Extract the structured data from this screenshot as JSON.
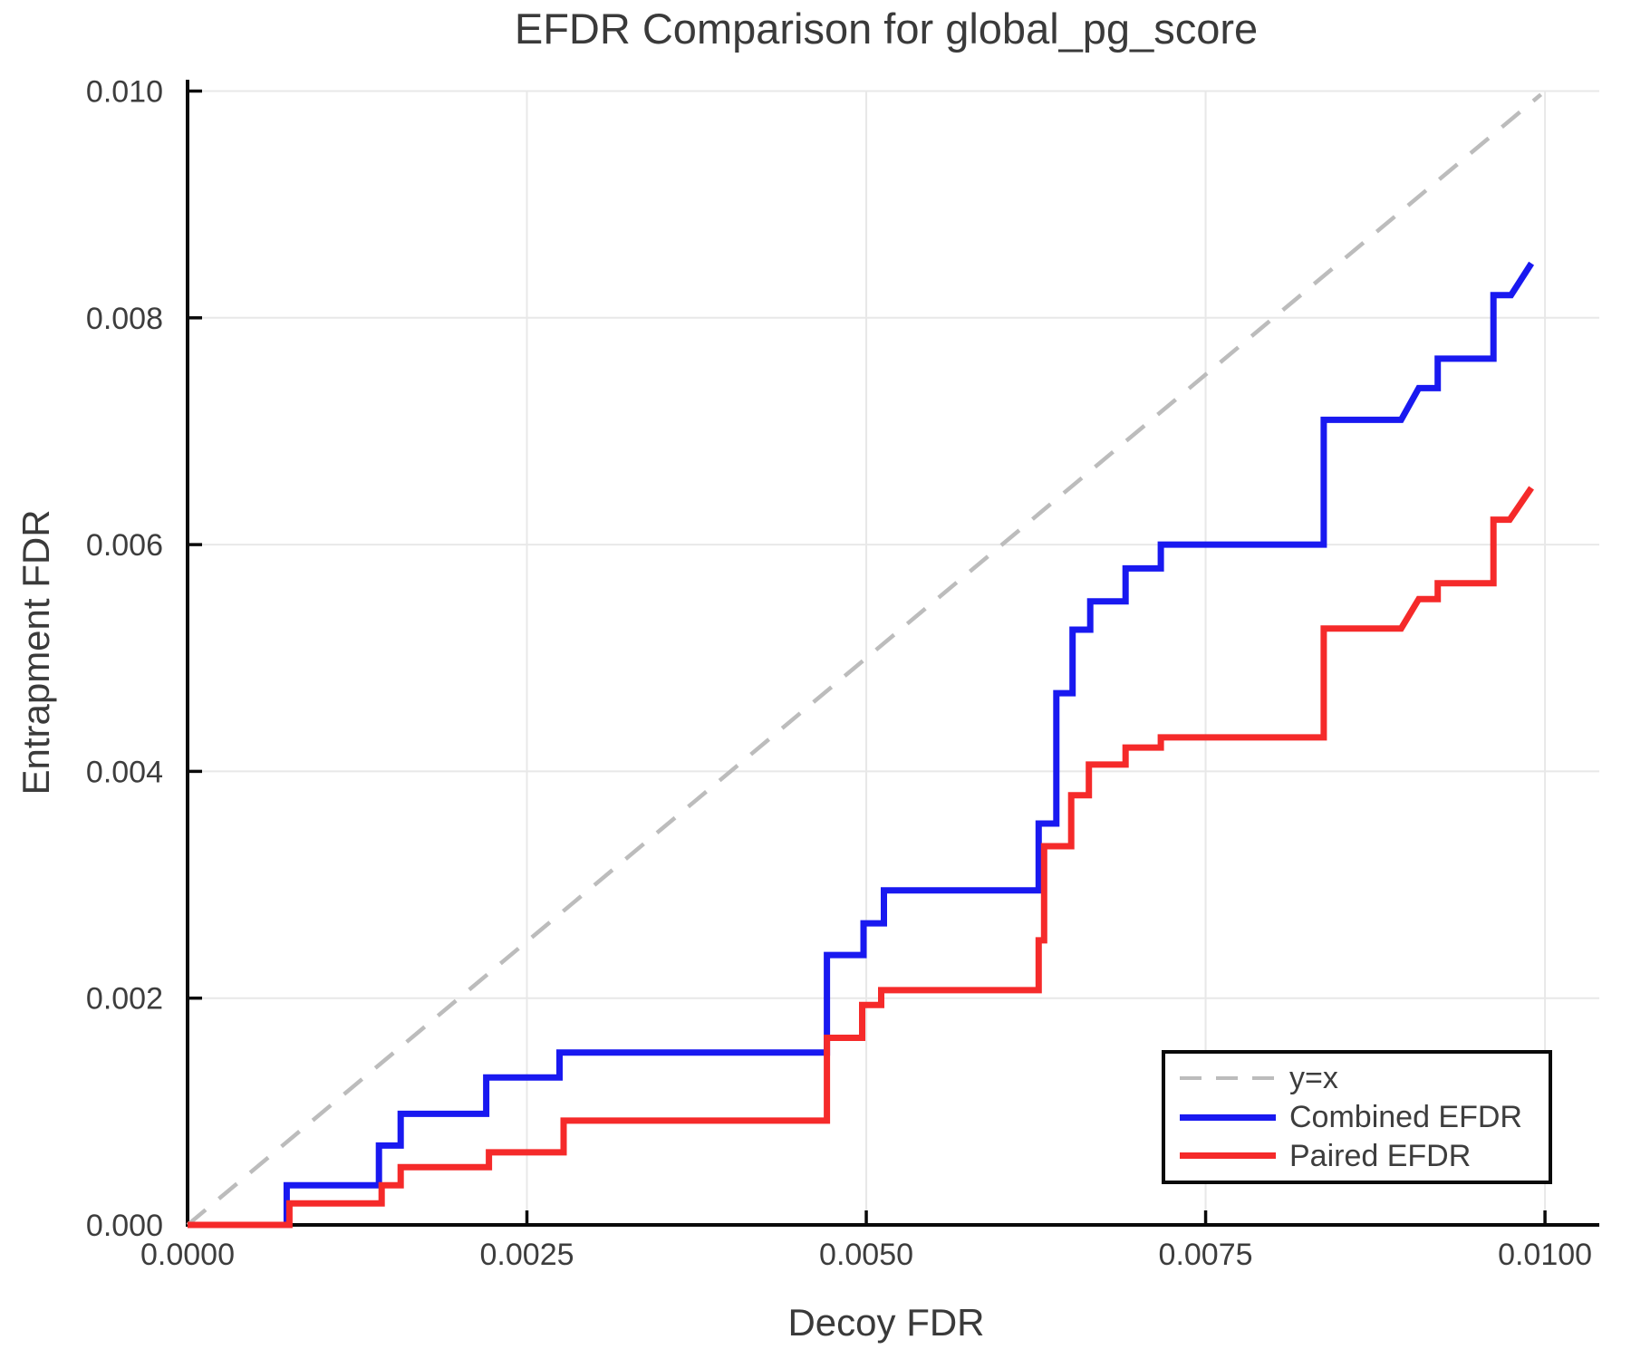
{
  "header": {
    "title": "EFDR Comparison for global_pg_score"
  },
  "colors": {
    "combined": "#1919f0",
    "paired": "#f52a2a",
    "identity": "#bcbcbc",
    "grid": "#e8e8e8",
    "spine": "#0a0a0a",
    "text": "#3d3d3d"
  },
  "chart_data": {
    "type": "line",
    "title": "EFDR Comparison for global_pg_score",
    "xlabel": "Decoy FDR",
    "ylabel": "Entrapment FDR",
    "xlim": [
      0,
      0.0104
    ],
    "ylim": [
      0,
      0.0101
    ],
    "grid": true,
    "legend_position": "lower right",
    "x_ticks": [
      0,
      0.0025,
      0.005,
      0.0075,
      0.01
    ],
    "x_tick_labels": [
      "0.0000",
      "0.0025",
      "0.0050",
      "0.0075",
      "0.0100"
    ],
    "y_ticks": [
      0,
      0.002,
      0.004,
      0.006,
      0.008,
      0.01
    ],
    "y_tick_labels": [
      "0.000",
      "0.002",
      "0.004",
      "0.006",
      "0.008",
      "0.010"
    ],
    "series": [
      {
        "name": "y=x",
        "style": "dashed",
        "color": "#bcbcbc",
        "points": [
          [
            0,
            0
          ],
          [
            0.00997,
            0.00997
          ]
        ]
      },
      {
        "name": "Combined EFDR",
        "style": "solid",
        "color": "#1919f0",
        "points": [
          [
            0,
            0
          ],
          [
            0.00073,
            0
          ],
          [
            0.00073,
            0.00035
          ],
          [
            0.00141,
            0.00035
          ],
          [
            0.00141,
            0.0007
          ],
          [
            0.00157,
            0.0007
          ],
          [
            0.00157,
            0.00098
          ],
          [
            0.0022,
            0.00098
          ],
          [
            0.0022,
            0.0013
          ],
          [
            0.00274,
            0.0013
          ],
          [
            0.00274,
            0.00152
          ],
          [
            0.00471,
            0.00152
          ],
          [
            0.00471,
            0.00238
          ],
          [
            0.00498,
            0.00238
          ],
          [
            0.00498,
            0.00266
          ],
          [
            0.00513,
            0.00266
          ],
          [
            0.00513,
            0.00295
          ],
          [
            0.00627,
            0.00295
          ],
          [
            0.00627,
            0.00354
          ],
          [
            0.0064,
            0.00354
          ],
          [
            0.0064,
            0.00469
          ],
          [
            0.00652,
            0.00469
          ],
          [
            0.00652,
            0.00525
          ],
          [
            0.00665,
            0.00525
          ],
          [
            0.00665,
            0.0055
          ],
          [
            0.00691,
            0.0055
          ],
          [
            0.00691,
            0.00579
          ],
          [
            0.00717,
            0.00579
          ],
          [
            0.00717,
            0.006
          ],
          [
            0.00837,
            0.006
          ],
          [
            0.00837,
            0.0071
          ],
          [
            0.00894,
            0.0071
          ],
          [
            0.00907,
            0.00738
          ],
          [
            0.00921,
            0.00738
          ],
          [
            0.00921,
            0.00764
          ],
          [
            0.00962,
            0.00764
          ],
          [
            0.00962,
            0.0082
          ],
          [
            0.00975,
            0.0082
          ],
          [
            0.0099,
            0.00848
          ]
        ]
      },
      {
        "name": "Paired EFDR",
        "style": "solid",
        "color": "#f52a2a",
        "points": [
          [
            0,
            0
          ],
          [
            0.00075,
            0
          ],
          [
            0.00075,
            0.00019
          ],
          [
            0.00143,
            0.00019
          ],
          [
            0.00143,
            0.00035
          ],
          [
            0.00157,
            0.00035
          ],
          [
            0.00157,
            0.00051
          ],
          [
            0.00222,
            0.00051
          ],
          [
            0.00222,
            0.00064
          ],
          [
            0.00277,
            0.00064
          ],
          [
            0.00277,
            0.00092
          ],
          [
            0.00471,
            0.00092
          ],
          [
            0.00471,
            0.00165
          ],
          [
            0.00497,
            0.00165
          ],
          [
            0.00497,
            0.00194
          ],
          [
            0.00511,
            0.00194
          ],
          [
            0.00511,
            0.00207
          ],
          [
            0.00627,
            0.00207
          ],
          [
            0.00627,
            0.00251
          ],
          [
            0.00631,
            0.00251
          ],
          [
            0.00631,
            0.00334
          ],
          [
            0.00651,
            0.00334
          ],
          [
            0.00651,
            0.00379
          ],
          [
            0.00664,
            0.00379
          ],
          [
            0.00664,
            0.00406
          ],
          [
            0.00691,
            0.00406
          ],
          [
            0.00691,
            0.00421
          ],
          [
            0.00717,
            0.00421
          ],
          [
            0.00717,
            0.0043
          ],
          [
            0.00837,
            0.0043
          ],
          [
            0.00837,
            0.00526
          ],
          [
            0.00894,
            0.00526
          ],
          [
            0.00907,
            0.00552
          ],
          [
            0.00921,
            0.00552
          ],
          [
            0.00921,
            0.00566
          ],
          [
            0.00962,
            0.00566
          ],
          [
            0.00962,
            0.00622
          ],
          [
            0.00974,
            0.00622
          ],
          [
            0.0099,
            0.0065
          ]
        ]
      }
    ]
  }
}
